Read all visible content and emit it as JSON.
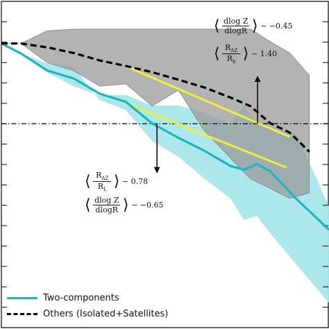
{
  "chart_data": {
    "type": "line",
    "title": "",
    "xlabel": "",
    "ylabel": "",
    "xlim": [
      0,
      1
    ],
    "ylim": [
      0,
      1
    ],
    "reference_line_y": 0.625,
    "grid": false,
    "legend_placement": "bottom-left",
    "series": [
      {
        "name": "Two-components",
        "color": "#1ab7be",
        "style": "solid",
        "x": [
          0.0,
          0.06,
          0.14,
          0.22,
          0.3,
          0.38,
          0.46,
          0.54,
          0.62,
          0.7,
          0.74,
          0.78,
          0.82,
          0.9,
          1.0
        ],
        "y": [
          0.871,
          0.84,
          0.788,
          0.764,
          0.717,
          0.692,
          0.626,
          0.582,
          0.542,
          0.495,
          0.484,
          0.501,
          0.48,
          0.395,
          0.3
        ],
        "band_upper": [
          0.871,
          0.84,
          0.782,
          0.74,
          0.712,
          0.713,
          0.681,
          0.681,
          0.658,
          0.625,
          0.684,
          0.625,
          0.606,
          0.596,
          0.371
        ],
        "band_lower": [
          0.871,
          0.84,
          0.81,
          0.799,
          0.698,
          0.667,
          0.572,
          0.524,
          0.456,
          0.395,
          0.33,
          0.342,
          0.29,
          0.194,
          0.075
        ],
        "fit_line": {
          "x": [
            0.38,
            0.87
          ],
          "y": [
            0.688,
            0.491
          ]
        }
      },
      {
        "name": "Others (Isolated+Satellites)",
        "color": "#000000",
        "style": "dashed",
        "x": [
          0.0,
          0.06,
          0.14,
          0.22,
          0.3,
          0.38,
          0.46,
          0.54,
          0.62,
          0.7,
          0.76,
          0.82,
          0.88,
          0.94
        ],
        "y": [
          0.871,
          0.871,
          0.859,
          0.842,
          0.819,
          0.802,
          0.783,
          0.76,
          0.736,
          0.705,
          0.679,
          0.627,
          0.598,
          0.539
        ],
        "band_upper": [
          0.871,
          0.871,
          0.91,
          0.915,
          0.915,
          0.915,
          0.915,
          0.915,
          0.915,
          0.915,
          0.915,
          0.877,
          0.842,
          0.774
        ],
        "band_lower": [
          0.871,
          0.871,
          0.812,
          0.788,
          0.74,
          0.747,
          0.679,
          0.728,
          0.603,
          0.519,
          0.456,
          0.427,
          0.396,
          0.413
        ],
        "fit_line": {
          "x": [
            0.38,
            0.88
          ],
          "y": [
            0.801,
            0.585
          ]
        }
      }
    ],
    "fit_color": "#f0ef3a",
    "band_colors": {
      "Two-components": "#a6e6ea",
      "Others": "#9a9a9a"
    },
    "annotations": {
      "upper_line1_num": "dlog Z",
      "upper_line1_den": "dlogR",
      "upper_line1_value": "∼ −0.45",
      "upper_line2_num": "R",
      "upper_line2_num_sub": "ΔZ",
      "upper_line2_den": "R",
      "upper_line2_den_sub": "h",
      "upper_line2_value": "∼ 1.40",
      "lower_line1_num": "R",
      "lower_line1_num_sub": "ΔZ",
      "lower_line1_den": "R",
      "lower_line1_den_sub": "L",
      "lower_line1_value": "∼ 0.78",
      "lower_line2_num": "dlog Z",
      "lower_line2_den": "dlogR",
      "lower_line2_value": "∼ −0.65"
    }
  }
}
